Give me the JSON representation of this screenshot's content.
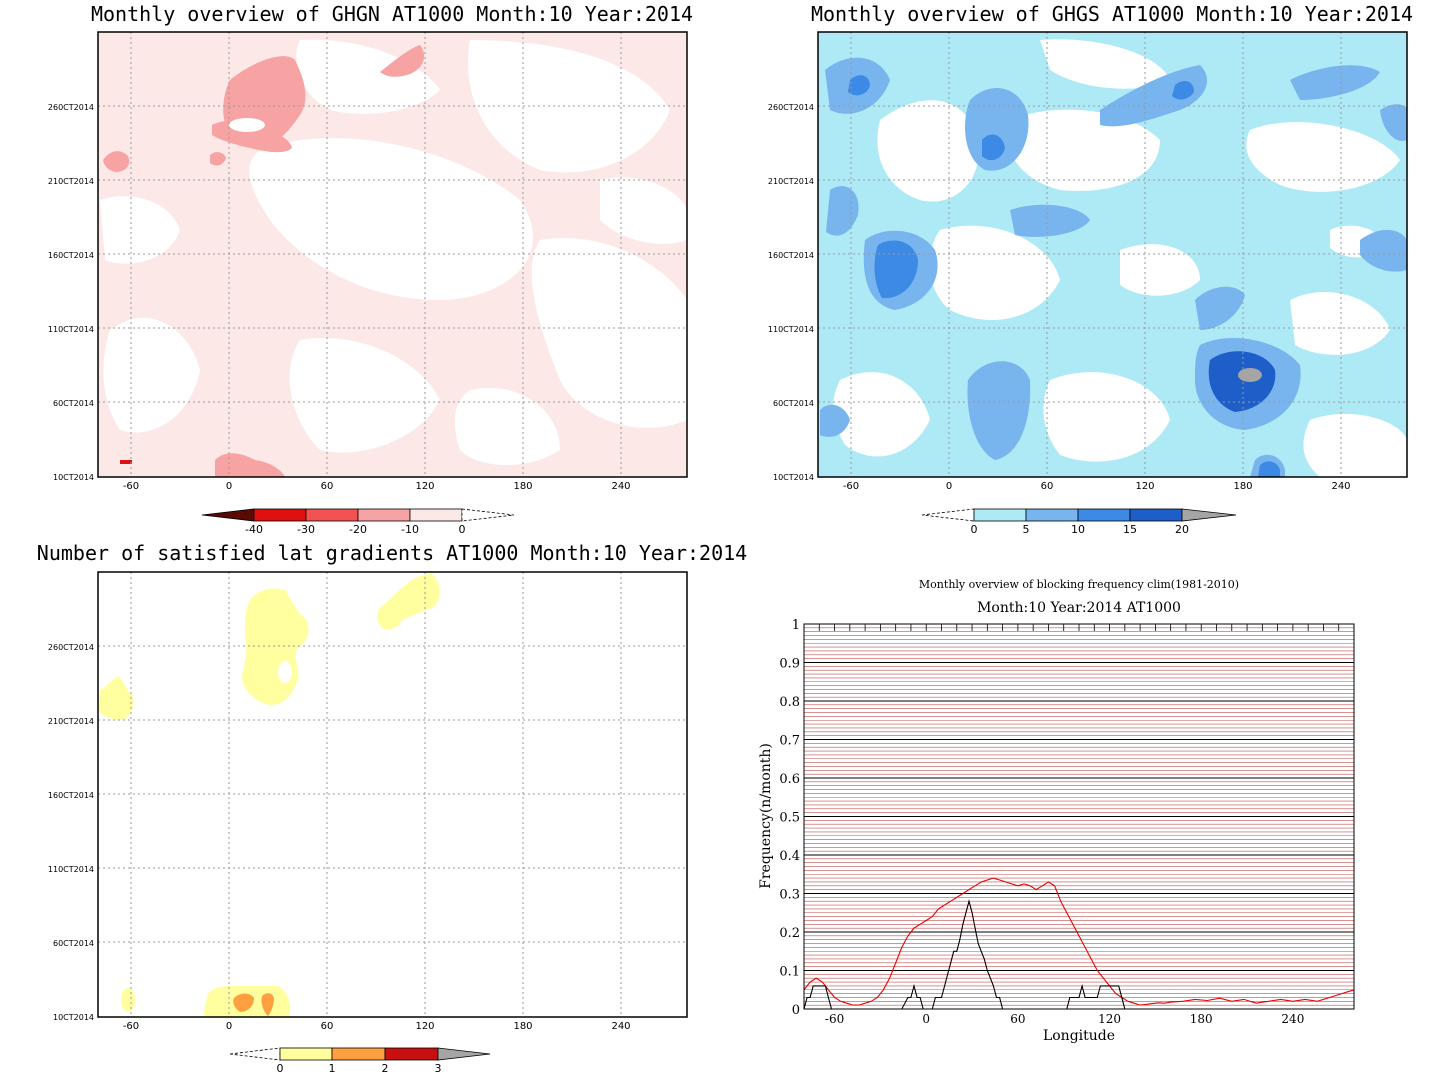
{
  "panels": {
    "ghgn": {
      "title": "Monthly overview of GHGN AT1000 Month:10 Year:2014",
      "x_ticks": [
        "-60",
        "0",
        "60",
        "120",
        "180",
        "240"
      ],
      "y_ticks": [
        "10CT2014",
        "60CT2014",
        "110CT2014",
        "160CT2014",
        "210CT2014",
        "260CT2014"
      ],
      "colorbar_labels": [
        "-40",
        "-30",
        "-20",
        "-10",
        "0"
      ],
      "colors": [
        "#5a0a05",
        "#e01010",
        "#f25252",
        "#f7a3a3",
        "#fde8e8"
      ]
    },
    "ghgs": {
      "title": "Monthly overview of GHGS AT1000 Month:10 Year:2014",
      "x_ticks": [
        "-60",
        "0",
        "60",
        "120",
        "180",
        "240"
      ],
      "y_ticks": [
        "10CT2014",
        "60CT2014",
        "110CT2014",
        "160CT2014",
        "210CT2014",
        "260CT2014"
      ],
      "colorbar_labels": [
        "0",
        "5",
        "10",
        "15",
        "20"
      ],
      "colors": [
        "#aeeaf5",
        "#78b4ee",
        "#3c8ae6",
        "#1e5ec8",
        "#a5a5a5"
      ]
    },
    "gradients": {
      "title": "Number of satisfied lat gradients AT1000 Month:10 Year:2014",
      "x_ticks": [
        "-60",
        "0",
        "60",
        "120",
        "180",
        "240"
      ],
      "y_ticks": [
        "10CT2014",
        "60CT2014",
        "110CT2014",
        "160CT2014",
        "210CT2014",
        "260CT2014"
      ],
      "colorbar_labels": [
        "0",
        "1",
        "2",
        "3"
      ],
      "colors": [
        "#ffffa0",
        "#ffa040",
        "#c81010",
        "#a5a5a5"
      ]
    }
  },
  "chart_data": {
    "type": "line",
    "title": "Monthly overview of blocking frequency clim(1981-2010)",
    "subtitle": "Month:10 Year:2014  AT1000",
    "xlabel": "Longitude",
    "ylabel": "Frequency(n/month)",
    "xlim": [
      -80,
      280
    ],
    "ylim": [
      0,
      1
    ],
    "x_ticks": [
      "-60",
      "0",
      "60",
      "120",
      "180",
      "240"
    ],
    "y_ticks": [
      "0",
      "0.1",
      "0.2",
      "0.3",
      "0.4",
      "0.5",
      "0.6",
      "0.7",
      "0.8",
      "0.9",
      "1"
    ],
    "grid": true,
    "series": [
      {
        "color": "#e60000",
        "x": [
          -80,
          -76,
          -72,
          -68,
          -64,
          -60,
          -56,
          -52,
          -48,
          -44,
          -40,
          -36,
          -32,
          -28,
          -24,
          -20,
          -16,
          -12,
          -8,
          -4,
          0,
          4,
          8,
          12,
          16,
          20,
          24,
          28,
          32,
          36,
          40,
          44,
          48,
          52,
          56,
          60,
          64,
          68,
          72,
          76,
          80,
          84,
          88,
          92,
          96,
          100,
          104,
          108,
          112,
          116,
          120,
          124,
          128,
          132,
          136,
          140,
          144,
          148,
          152,
          156,
          160,
          168,
          176,
          184,
          192,
          200,
          208,
          216,
          224,
          232,
          240,
          248,
          256,
          264,
          272,
          280
        ],
        "y": [
          0.05,
          0.07,
          0.08,
          0.07,
          0.05,
          0.03,
          0.02,
          0.015,
          0.01,
          0.01,
          0.015,
          0.02,
          0.03,
          0.05,
          0.08,
          0.12,
          0.16,
          0.19,
          0.21,
          0.22,
          0.23,
          0.24,
          0.26,
          0.27,
          0.28,
          0.29,
          0.3,
          0.31,
          0.32,
          0.33,
          0.335,
          0.34,
          0.335,
          0.33,
          0.325,
          0.32,
          0.325,
          0.32,
          0.31,
          0.32,
          0.33,
          0.32,
          0.28,
          0.25,
          0.22,
          0.19,
          0.16,
          0.13,
          0.1,
          0.08,
          0.06,
          0.04,
          0.03,
          0.02,
          0.015,
          0.01,
          0.012,
          0.014,
          0.016,
          0.015,
          0.018,
          0.02,
          0.025,
          0.022,
          0.028,
          0.02,
          0.025,
          0.015,
          0.02,
          0.025,
          0.02,
          0.025,
          0.02,
          0.03,
          0.04,
          0.05
        ]
      },
      {
        "color": "#000000",
        "x": [
          -80,
          -78,
          -76,
          -74,
          -72,
          -70,
          -68,
          -66,
          -64,
          -62,
          -60,
          -58,
          -56,
          -20,
          -16,
          -12,
          -10,
          -8,
          -6,
          -4,
          -2,
          0,
          4,
          6,
          8,
          10,
          12,
          14,
          16,
          18,
          20,
          22,
          24,
          26,
          28,
          30,
          32,
          34,
          36,
          38,
          40,
          42,
          44,
          46,
          48,
          50,
          52,
          54,
          90,
          92,
          94,
          96,
          98,
          100,
          102,
          104,
          106,
          108,
          110,
          112,
          114,
          116,
          118,
          120,
          122,
          124,
          126,
          128,
          130,
          140,
          280
        ],
        "y": [
          0.0,
          0.03,
          0.03,
          0.06,
          0.06,
          0.06,
          0.06,
          0.06,
          0.03,
          0.0,
          0.0,
          0.0,
          0.0,
          0.0,
          0.0,
          0.03,
          0.03,
          0.06,
          0.03,
          0.03,
          0.0,
          0.0,
          0.0,
          0.03,
          0.03,
          0.03,
          0.06,
          0.09,
          0.12,
          0.15,
          0.15,
          0.18,
          0.22,
          0.25,
          0.28,
          0.25,
          0.21,
          0.17,
          0.15,
          0.13,
          0.1,
          0.08,
          0.06,
          0.03,
          0.03,
          0.0,
          0.0,
          0.0,
          0.0,
          0.0,
          0.03,
          0.03,
          0.03,
          0.03,
          0.06,
          0.03,
          0.03,
          0.03,
          0.03,
          0.03,
          0.06,
          0.06,
          0.06,
          0.06,
          0.06,
          0.06,
          0.06,
          0.03,
          0.0,
          0.0,
          0.0
        ]
      }
    ]
  }
}
